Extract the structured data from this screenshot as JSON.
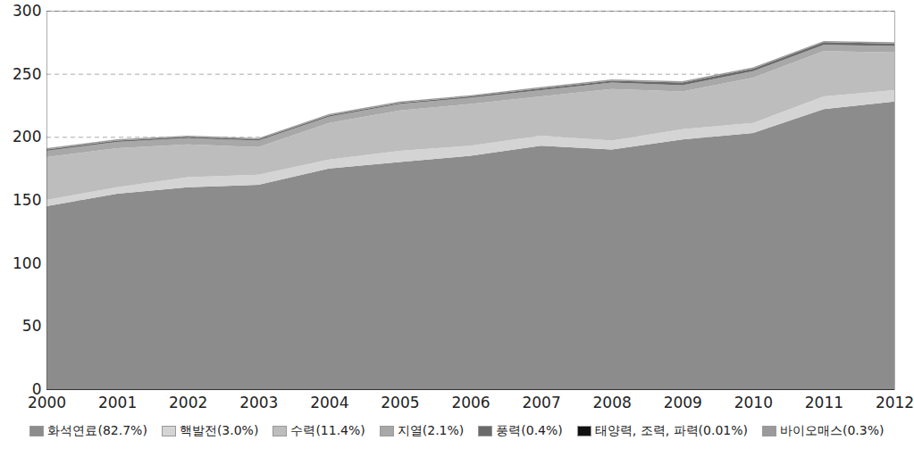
{
  "chart_data": {
    "type": "area",
    "stacked": true,
    "grid": true,
    "legend": "bottom",
    "x": [
      2000,
      2001,
      2002,
      2003,
      2004,
      2005,
      2006,
      2007,
      2008,
      2009,
      2010,
      2011,
      2012
    ],
    "xlim": [
      2000,
      2012
    ],
    "xticks": [
      2000,
      2001,
      2002,
      2003,
      2004,
      2005,
      2006,
      2007,
      2008,
      2009,
      2010,
      2011,
      2012
    ],
    "ylim": [
      0,
      300
    ],
    "yticks": [
      0,
      50,
      100,
      150,
      200,
      250,
      300
    ],
    "series": [
      {
        "name": "화석연료(82.7%)",
        "color": "#8c8c8c",
        "values": [
          145,
          155,
          160,
          162,
          175,
          180,
          185,
          193,
          190,
          198,
          203,
          222,
          228
        ]
      },
      {
        "name": "핵발전(3.0%)",
        "color": "#d4d4d4",
        "values": [
          5,
          5,
          8,
          8,
          7,
          9,
          8,
          8,
          7,
          8,
          8,
          10,
          9
        ]
      },
      {
        "name": "수력(11.4%)",
        "color": "#bdbdbd",
        "values": [
          34,
          31,
          26,
          22,
          29,
          32,
          33,
          31,
          41,
          30,
          36,
          36,
          30
        ]
      },
      {
        "name": "지열(2.1%)",
        "color": "#a8a8a8",
        "values": [
          5,
          5,
          5,
          5,
          5,
          5,
          5,
          5,
          5,
          5,
          5,
          5,
          5
        ]
      },
      {
        "name": "풍력(0.4%)",
        "color": "#6a6a6a",
        "values": [
          1,
          1,
          1,
          1,
          1,
          1,
          1,
          1.5,
          1.5,
          2,
          2,
          2,
          2
        ]
      },
      {
        "name": "태양력, 조력, 파력(0.01%)",
        "color": "#111111",
        "values": [
          0.03,
          0.03,
          0.03,
          0.03,
          0.03,
          0.03,
          0.03,
          0.03,
          0.03,
          0.03,
          0.03,
          0.03,
          0.03
        ]
      },
      {
        "name": "바이오매스(0.3%)",
        "color": "#9a9a9a",
        "values": [
          1,
          1,
          1,
          1,
          1,
          1,
          1,
          1,
          1,
          1,
          1,
          1,
          1
        ]
      }
    ]
  }
}
